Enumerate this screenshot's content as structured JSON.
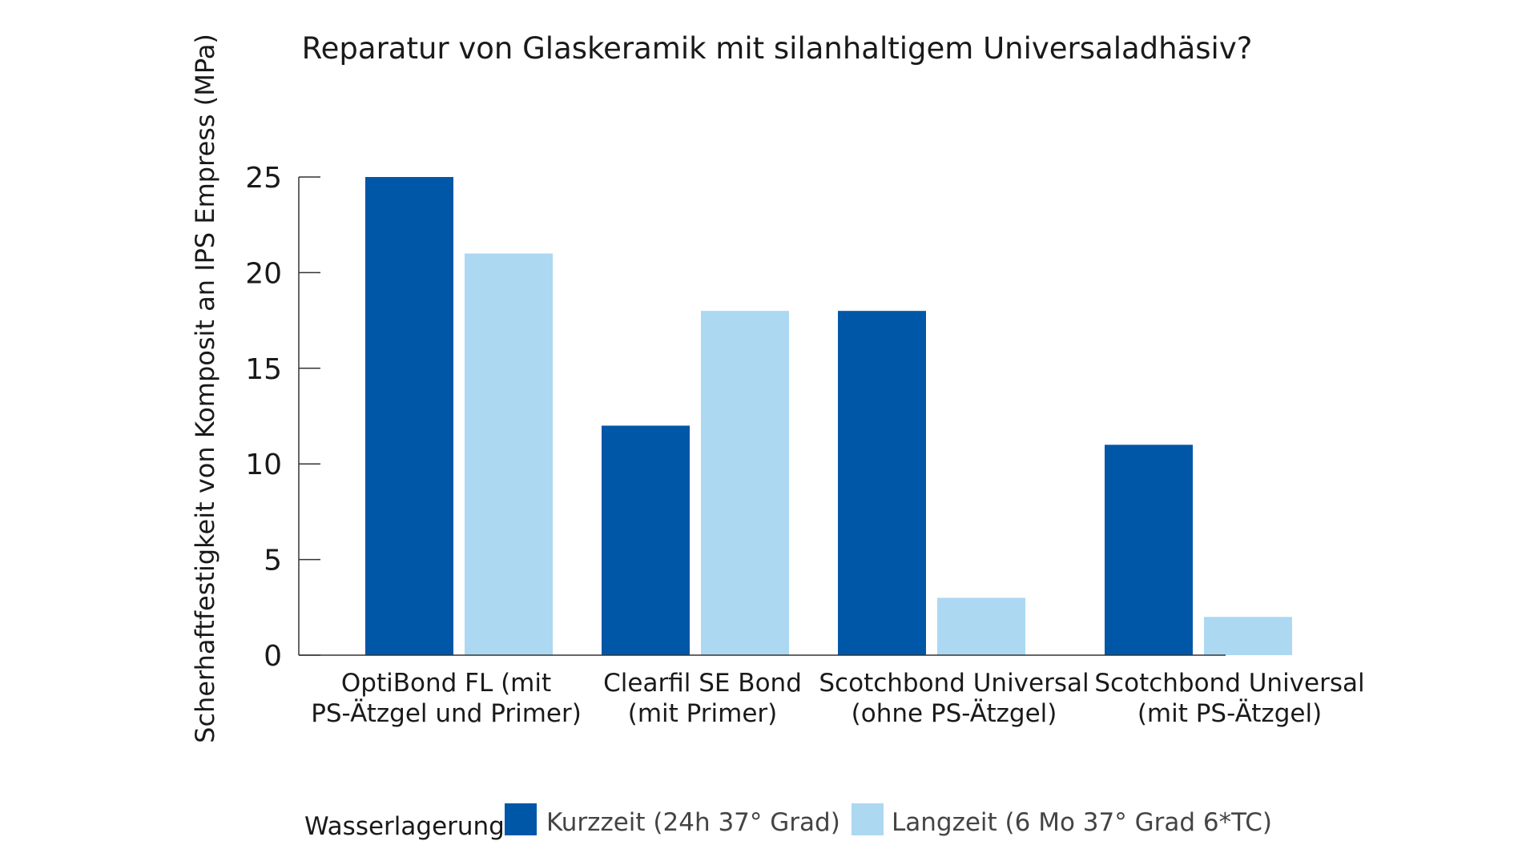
{
  "chart_data": {
    "type": "bar",
    "title": "Reparatur von Glaskeramik mit silanhaltigem Universaladhäsiv?",
    "xlabel": "",
    "ylabel": "Scherhaftfestigkeit von Komposit an IPS Empress (MPa)",
    "ylim": [
      0,
      25
    ],
    "yticks": [
      0,
      5,
      10,
      15,
      20,
      25
    ],
    "grid": false,
    "categories": [
      [
        "OptiBond FL (mit",
        "PS-Ätzgel und Primer)"
      ],
      [
        "Clearfil SE Bond",
        "(mit Primer)"
      ],
      [
        "Scotchbond Universal",
        "(ohne PS-Ätzgel)"
      ],
      [
        "Scotchbond Universal",
        "(mit PS-Ätzgel)"
      ]
    ],
    "series": [
      {
        "name": "Kurzzeit (24h 37° Grad)",
        "color": "#0057a8",
        "values": [
          25,
          12,
          18,
          11
        ]
      },
      {
        "name": "Langzeit (6 Mo 37° Grad 6*TC)",
        "color": "#acd8f2",
        "values": [
          21,
          18,
          3,
          2
        ]
      }
    ],
    "legend": {
      "title": "Wasserlagerung",
      "position": "bottom"
    }
  }
}
